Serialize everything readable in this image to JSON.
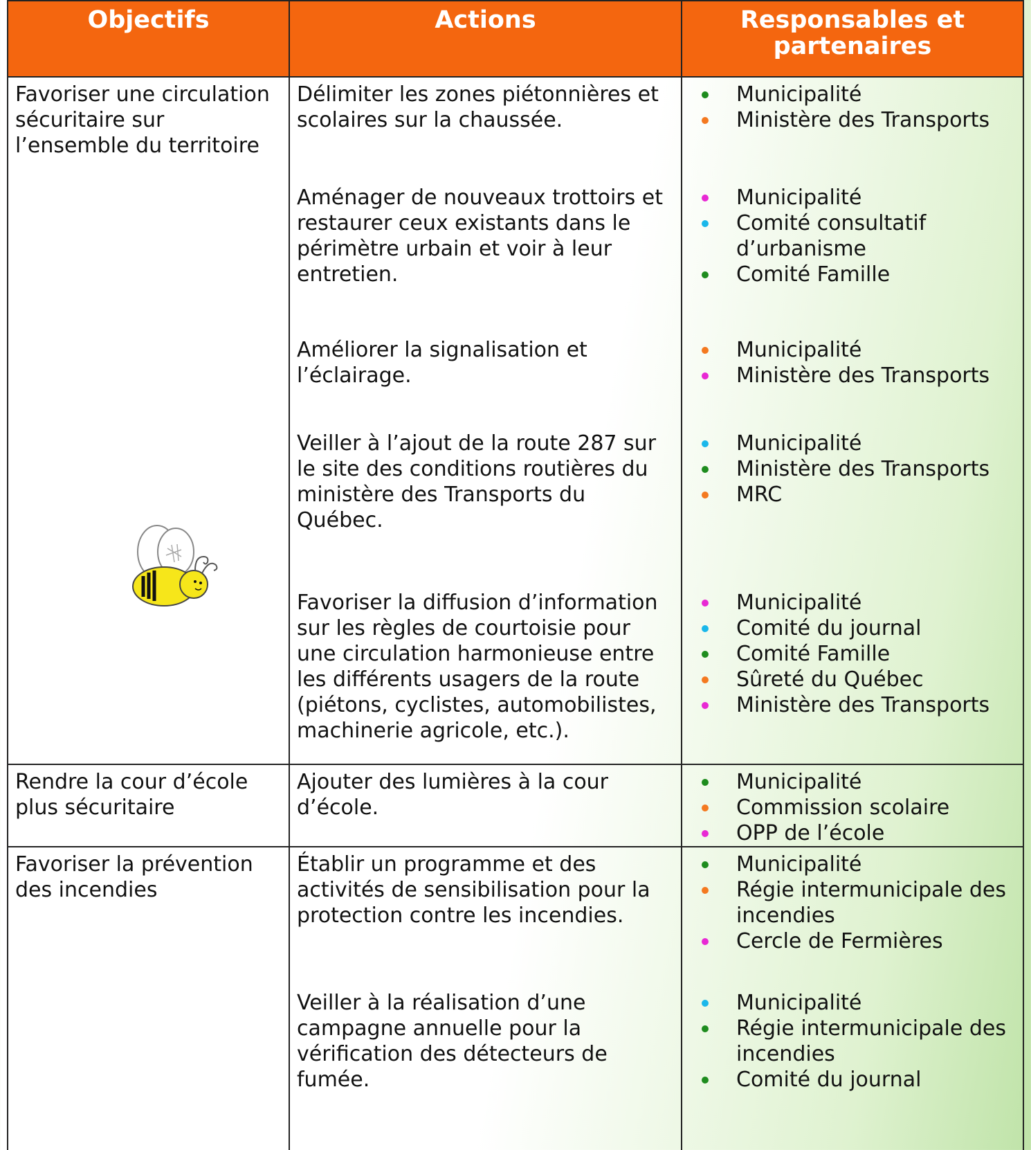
{
  "header": {
    "columns": [
      "Objectifs",
      "Actions",
      "Responsables et partenaires"
    ]
  },
  "rows": [
    {
      "objective": "Favoriser une circulation sécuritaire sur l’ensemble du territoire",
      "actions": [
        {
          "text": "Délimiter les zones piétonnières et scolaires sur la chaussée.",
          "partners": [
            {
              "text": "Municipalité",
              "color": "#1e8c1e"
            },
            {
              "text": "Ministère des Transports",
              "color": "#f47920"
            }
          ]
        },
        {
          "text": "Aménager de nouveaux trottoirs et restaurer ceux existants dans le périmètre urbain et voir à leur entretien.",
          "partners": [
            {
              "text": "Municipalité",
              "color": "#e829d4"
            },
            {
              "text": "Comité consultatif d’urbanisme",
              "color": "#1ab7ea"
            },
            {
              "text": "Comité Famille",
              "color": "#1e8c1e"
            }
          ]
        },
        {
          "text": "Améliorer la signalisation et l’éclairage.",
          "partners": [
            {
              "text": "Municipalité",
              "color": "#f47920"
            },
            {
              "text": "Ministère des Transports",
              "color": "#e829d4"
            }
          ]
        },
        {
          "text": "Veiller à l’ajout de la route 287 sur le site des conditions routières du ministère des Transports du Québec.",
          "partners": [
            {
              "text": "Municipalité",
              "color": "#1ab7ea"
            },
            {
              "text": "Ministère des Transports",
              "color": "#1e8c1e"
            },
            {
              "text": "MRC",
              "color": "#f47920"
            }
          ]
        },
        {
          "text": "Favoriser la diffusion d’information sur les règles de courtoisie pour une circulation harmonieuse entre les différents usagers de la route (piétons, cyclistes, automobilistes, machinerie agricole, etc.).",
          "partners": [
            {
              "text": "Municipalité",
              "color": "#e829d4"
            },
            {
              "text": "Comité du journal",
              "color": "#1ab7ea"
            },
            {
              "text": "Comité Famille",
              "color": "#1e8c1e"
            },
            {
              "text": "Sûreté du Québec",
              "color": "#f47920"
            },
            {
              "text": "Ministère des Transports",
              "color": "#e829d4"
            }
          ]
        }
      ]
    },
    {
      "objective": "Rendre la cour d’école plus sécuritaire",
      "actions": [
        {
          "text": "Ajouter des lumières à la cour d’école.",
          "partners": [
            {
              "text": "Municipalité",
              "color": "#1e8c1e"
            },
            {
              "text": "Commission scolaire",
              "color": "#f47920"
            },
            {
              "text": "OPP de l’école",
              "color": "#e829d4"
            }
          ]
        }
      ]
    },
    {
      "objective": "Favoriser la prévention des incendies",
      "actions": [
        {
          "text": "Établir un programme et des activités de sensibilisation pour la protection contre les incendies.",
          "partners": [
            {
              "text": "Municipalité",
              "color": "#1e8c1e"
            },
            {
              "text": "Régie intermunicipale des incendies",
              "color": "#f47920"
            },
            {
              "text": "Cercle de Fermières",
              "color": "#e829d4"
            }
          ]
        },
        {
          "text": "Veiller à la réalisation d’une campagne annuelle pour la vérification des détecteurs de fumée.",
          "partners": [
            {
              "text": "Municipalité",
              "color": "#1ab7ea"
            },
            {
              "text": "Régie intermunicipale des incendies",
              "color": "#1e8c1e"
            },
            {
              "text": "Comité du journal",
              "color": "#1e8c1e"
            }
          ]
        }
      ]
    }
  ]
}
